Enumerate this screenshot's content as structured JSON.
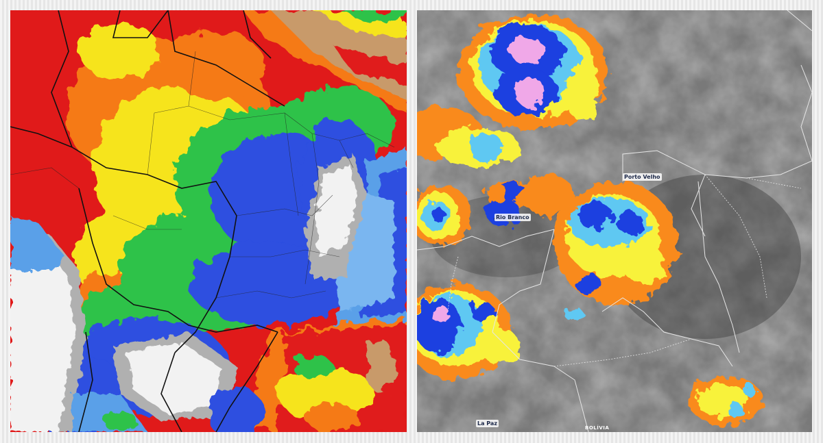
{
  "left_map": {
    "colors": {
      "ocean_low": "#5aa0e8",
      "dry_red": "#e01a1a",
      "orange": "#f57a14",
      "yellow": "#f6e41e",
      "green": "#2fc24a",
      "blue": "#2d4fe0",
      "light_blue": "#7ab6f0",
      "gray": "#b0b0b0",
      "white": "#f2f2f2",
      "tan": "#c89a6a",
      "border": "#111111"
    }
  },
  "right_map": {
    "cities": [
      {
        "name": "Porto Velho"
      },
      {
        "name": "Rio Branco"
      },
      {
        "name": "La Paz"
      }
    ],
    "countries": [
      {
        "name": "BOLÍVIA"
      }
    ],
    "colors": {
      "cloud_gray": "#7a7a7a",
      "orange": "#f98a1e",
      "yellow": "#f8f23a",
      "cyan": "#5ec8f2",
      "blue": "#1f3fe0",
      "pink": "#f0a8e8",
      "border": "#dddddd"
    }
  }
}
